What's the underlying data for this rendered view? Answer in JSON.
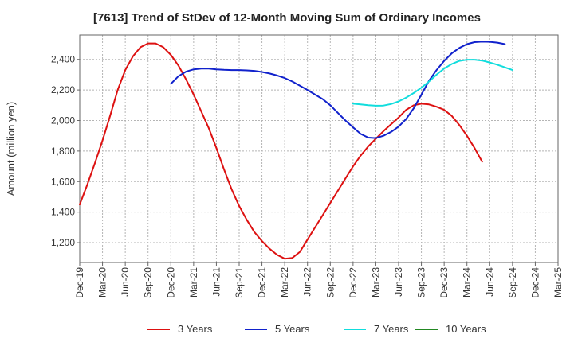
{
  "chart_data": {
    "type": "line",
    "title": "[7613]  Trend of StDev of 12-Month Moving Sum of Ordinary Incomes",
    "xlabel": "",
    "ylabel": "Amount (million yen)",
    "ylim": [
      1070,
      2560
    ],
    "yticks": [
      1200,
      1400,
      1600,
      1800,
      2000,
      2200,
      2400
    ],
    "ytick_labels": [
      "1,200",
      "1,400",
      "1,600",
      "1,800",
      "2,000",
      "2,200",
      "2,400"
    ],
    "x_tick_labels": [
      "Dec-19",
      "Mar-20",
      "Jun-20",
      "Sep-20",
      "Dec-20",
      "Mar-21",
      "Jun-21",
      "Sep-21",
      "Dec-21",
      "Mar-22",
      "Jun-22",
      "Sep-22",
      "Dec-22",
      "Mar-23",
      "Jun-23",
      "Sep-23",
      "Dec-23",
      "Mar-24",
      "Jun-24",
      "Sep-24",
      "Dec-24",
      "Mar-25"
    ],
    "grid": true,
    "legend_position": "bottom",
    "series": [
      {
        "name": "3 Years",
        "color": "#dd1111",
        "start_index": 0,
        "values": [
          1450,
          1580,
          1720,
          1870,
          2030,
          2200,
          2330,
          2420,
          2480,
          2505,
          2505,
          2480,
          2430,
          2360,
          2270,
          2170,
          2060,
          1950,
          1820,
          1680,
          1550,
          1440,
          1350,
          1270,
          1210,
          1160,
          1120,
          1095,
          1100,
          1140,
          1220,
          1300,
          1380,
          1460,
          1540,
          1620,
          1700,
          1770,
          1830,
          1880,
          1930,
          1975,
          2020,
          2070,
          2100,
          2110,
          2105,
          2090,
          2070,
          2030,
          1970,
          1900,
          1820,
          1730
        ]
      },
      {
        "name": "5 Years",
        "color": "#1122cc",
        "start_index": 12,
        "values": [
          2240,
          2290,
          2320,
          2335,
          2340,
          2340,
          2335,
          2332,
          2330,
          2330,
          2328,
          2325,
          2318,
          2308,
          2295,
          2278,
          2255,
          2228,
          2200,
          2170,
          2140,
          2100,
          2050,
          2000,
          1955,
          1912,
          1888,
          1885,
          1900,
          1925,
          1960,
          2010,
          2080,
          2170,
          2260,
          2330,
          2390,
          2440,
          2475,
          2500,
          2513,
          2516,
          2515,
          2510,
          2500
        ]
      },
      {
        "name": "7 Years",
        "color": "#11dddd",
        "start_index": 36,
        "values": [
          2110,
          2105,
          2100,
          2097,
          2098,
          2108,
          2125,
          2150,
          2180,
          2215,
          2255,
          2300,
          2340,
          2370,
          2390,
          2398,
          2398,
          2392,
          2380,
          2365,
          2348,
          2330
        ]
      },
      {
        "name": "10 Years",
        "color": "#228822",
        "start_index": 0,
        "values": []
      }
    ]
  }
}
